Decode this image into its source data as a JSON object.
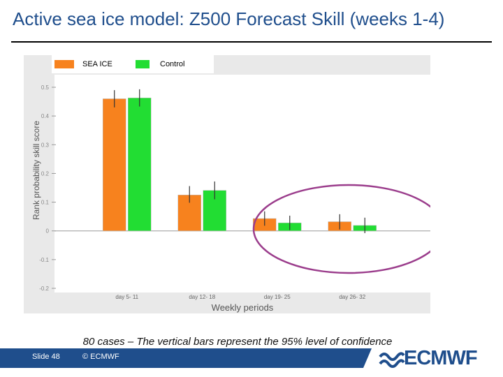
{
  "slide": {
    "title": "Active sea ice model: Z500 Forecast Skill (weeks 1-4)",
    "caption": "80 cases – The vertical bars represent the 95% level of confidence",
    "slide_number": "Slide 48",
    "copyright": "© ECMWF",
    "logo": "ECMWF"
  },
  "colors": {
    "sea_ice": "#f7821e",
    "control": "#22dd33",
    "title": "#1f4e8c",
    "footer": "#1f4e8c",
    "highlight_circle": "#9b3d8c"
  },
  "chart_data": {
    "type": "bar",
    "categories": [
      "day 5- 11",
      "day 12- 18",
      "day 19- 25",
      "day 26- 32"
    ],
    "series": [
      {
        "name": "SEA ICE",
        "values": [
          0.46,
          0.125,
          0.043,
          0.032
        ],
        "error_low": [
          0.43,
          0.098,
          0.018,
          0.005
        ],
        "error_high": [
          0.49,
          0.156,
          0.068,
          0.058
        ]
      },
      {
        "name": "Control",
        "values": [
          0.463,
          0.141,
          0.028,
          0.019
        ],
        "error_low": [
          0.433,
          0.11,
          0.003,
          -0.008
        ],
        "error_high": [
          0.493,
          0.172,
          0.053,
          0.046
        ]
      }
    ],
    "yticks": [
      "0.5",
      "0.4",
      "0.3",
      "0.2",
      "0.1",
      "0",
      "-0.1",
      "-0.2"
    ],
    "ylim": [
      -0.2,
      0.5
    ],
    "xlabel": "Weekly periods",
    "ylabel": "Rank probability skill score",
    "legend_position": "top",
    "highlight": "ellipse around day 19- 25 and day 26- 32"
  }
}
